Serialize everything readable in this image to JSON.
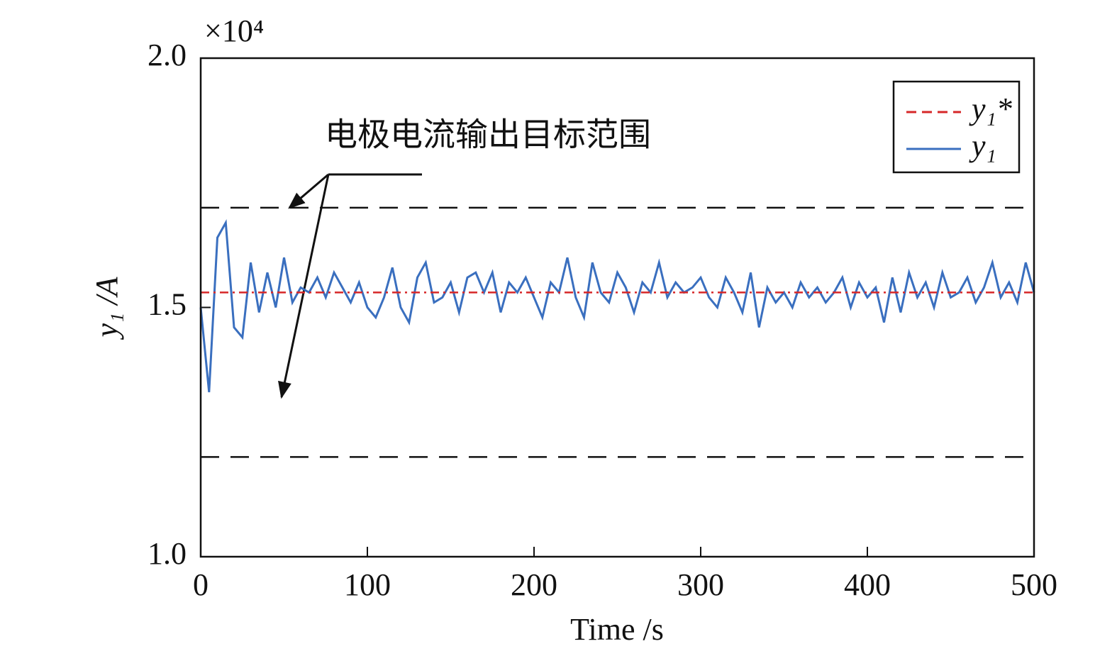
{
  "chart_data": {
    "type": "line",
    "xlabel": "Time /s",
    "ylabel": "y₁ /A",
    "y_multiplier": "×10⁴",
    "annotation": "电极电流输出目标范围",
    "xlim": [
      0,
      500
    ],
    "xticks": [
      0,
      100,
      200,
      300,
      400,
      500
    ],
    "ylim": [
      1.0,
      2.0
    ],
    "yticks": [
      {
        "value": 1.0,
        "label": "1.0"
      },
      {
        "value": 1.5,
        "label": "1.5"
      },
      {
        "value": 2.0,
        "label": "2.0"
      }
    ],
    "reference_lines": [
      1.7,
      1.2
    ],
    "legend": "upper right",
    "series": [
      {
        "name": "y₁*",
        "color": "#d62728",
        "dashed": true,
        "x": [
          0,
          500
        ],
        "values": [
          1.53,
          1.53
        ]
      },
      {
        "name": "y₁",
        "color": "#3a6fbf",
        "dashed": false,
        "x": [
          0,
          5,
          10,
          15,
          20,
          25,
          30,
          35,
          40,
          45,
          50,
          55,
          60,
          65,
          70,
          75,
          80,
          85,
          90,
          95,
          100,
          105,
          110,
          115,
          120,
          125,
          130,
          135,
          140,
          145,
          150,
          155,
          160,
          165,
          170,
          175,
          180,
          185,
          190,
          195,
          200,
          205,
          210,
          215,
          220,
          225,
          230,
          235,
          240,
          245,
          250,
          255,
          260,
          265,
          270,
          275,
          280,
          285,
          290,
          295,
          300,
          305,
          310,
          315,
          320,
          325,
          330,
          335,
          340,
          345,
          350,
          355,
          360,
          365,
          370,
          375,
          380,
          385,
          390,
          395,
          400,
          405,
          410,
          415,
          420,
          425,
          430,
          435,
          440,
          445,
          450,
          455,
          460,
          465,
          470,
          475,
          480,
          485,
          490,
          495,
          500
        ],
        "values": [
          1.5,
          1.33,
          1.64,
          1.67,
          1.46,
          1.44,
          1.59,
          1.49,
          1.57,
          1.5,
          1.6,
          1.51,
          1.54,
          1.53,
          1.56,
          1.52,
          1.57,
          1.54,
          1.51,
          1.55,
          1.5,
          1.48,
          1.52,
          1.58,
          1.5,
          1.47,
          1.56,
          1.59,
          1.51,
          1.52,
          1.55,
          1.49,
          1.56,
          1.57,
          1.53,
          1.57,
          1.49,
          1.55,
          1.53,
          1.56,
          1.52,
          1.48,
          1.55,
          1.53,
          1.6,
          1.52,
          1.48,
          1.59,
          1.53,
          1.51,
          1.57,
          1.54,
          1.49,
          1.55,
          1.53,
          1.59,
          1.52,
          1.55,
          1.53,
          1.54,
          1.56,
          1.52,
          1.5,
          1.56,
          1.53,
          1.49,
          1.57,
          1.46,
          1.54,
          1.51,
          1.53,
          1.5,
          1.55,
          1.52,
          1.54,
          1.51,
          1.53,
          1.56,
          1.5,
          1.55,
          1.52,
          1.54,
          1.47,
          1.56,
          1.49,
          1.57,
          1.52,
          1.55,
          1.5,
          1.57,
          1.52,
          1.53,
          1.56,
          1.51,
          1.54,
          1.59,
          1.52,
          1.55,
          1.51,
          1.59,
          1.53
        ]
      }
    ]
  }
}
